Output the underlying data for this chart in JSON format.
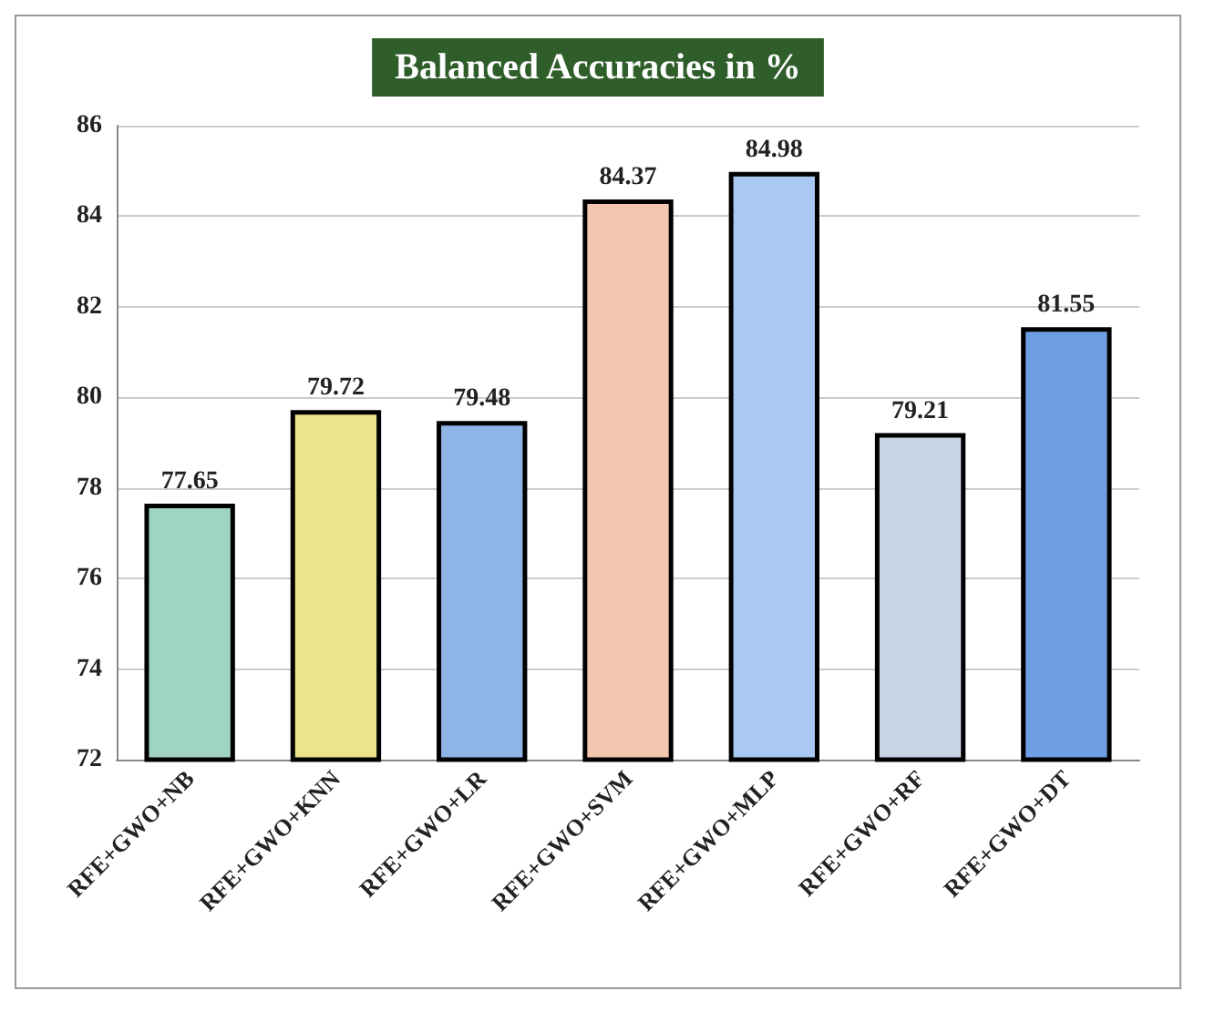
{
  "chart_data": {
    "type": "bar",
    "title": "Balanced Accuracies in %",
    "categories": [
      "RFE+GWO+NB",
      "RFE+GWO+KNN",
      "RFE+GWO+LR",
      "RFE+GWO+SVM",
      "RFE+GWO+MLP",
      "RFE+GWO+RF",
      "RFE+GWO+DT"
    ],
    "values": [
      77.65,
      79.72,
      79.48,
      84.37,
      84.98,
      79.21,
      81.55
    ],
    "colors": [
      "#9fd4c4",
      "#ece48c",
      "#8fb4e6",
      "#f2c6ae",
      "#a9c8f2",
      "#c9d3e6",
      "#6f9fe3"
    ],
    "ylim": [
      72,
      86
    ],
    "yticks": [
      72,
      74,
      76,
      78,
      80,
      82,
      84,
      86
    ],
    "grid": "y",
    "data_labels": true
  }
}
